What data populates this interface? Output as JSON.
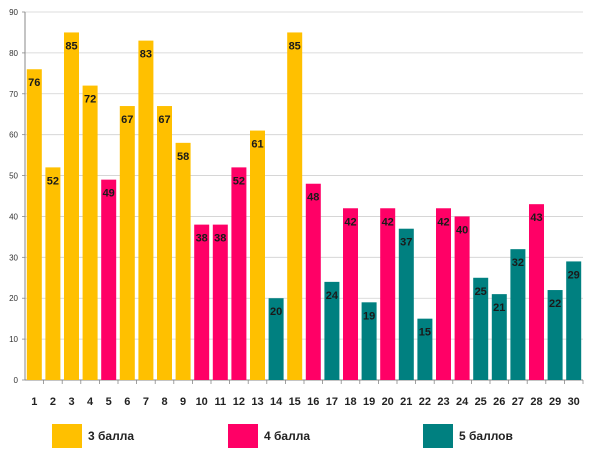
{
  "chart_data": {
    "type": "bar",
    "categories": [
      "1",
      "2",
      "3",
      "4",
      "5",
      "6",
      "7",
      "8",
      "9",
      "10",
      "11",
      "12",
      "13",
      "14",
      "15",
      "16",
      "17",
      "18",
      "19",
      "20",
      "21",
      "22",
      "23",
      "24",
      "25",
      "26",
      "27",
      "28",
      "29",
      "30"
    ],
    "values": [
      76,
      52,
      85,
      72,
      49,
      67,
      83,
      67,
      58,
      38,
      38,
      52,
      61,
      20,
      85,
      48,
      24,
      42,
      19,
      42,
      37,
      15,
      42,
      40,
      25,
      21,
      32,
      43,
      22,
      29
    ],
    "groups": [
      "3 балла",
      "3 балла",
      "3 балла",
      "3 балла",
      "4 балла",
      "3 балла",
      "3 балла",
      "3 балла",
      "3 балла",
      "4 балла",
      "4 балла",
      "4 балла",
      "3 балла",
      "5 баллов",
      "3 балла",
      "4 балла",
      "5 баллов",
      "4 балла",
      "5 баллов",
      "4 балла",
      "5 баллов",
      "5 баллов",
      "4 балла",
      "4 балла",
      "5 баллов",
      "5 баллов",
      "5 баллов",
      "4 балла",
      "5 баллов",
      "5 баллов"
    ],
    "ylim": [
      0,
      90
    ],
    "yticks": [
      0,
      10,
      20,
      30,
      40,
      50,
      60,
      70,
      80,
      90
    ],
    "grid": true,
    "legend_position": "bottom",
    "legend": [
      {
        "name": "3 балла",
        "color": "#FFC000"
      },
      {
        "name": "4 балла",
        "color": "#FF0066"
      },
      {
        "name": "5 баллов",
        "color": "#008080"
      }
    ]
  }
}
